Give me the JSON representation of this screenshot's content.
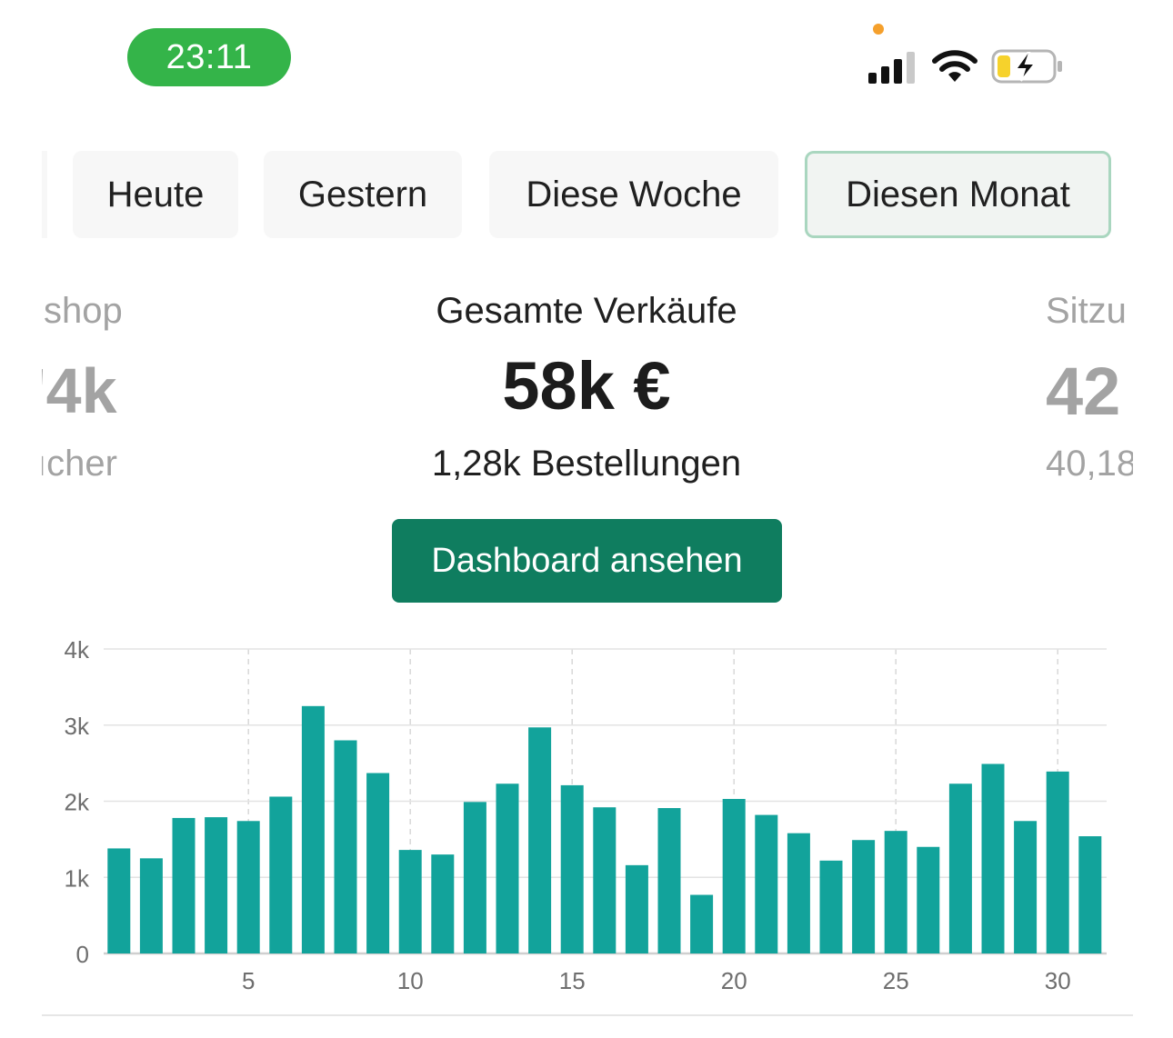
{
  "status_bar": {
    "time": "23:11",
    "icons": [
      "privacy-dot",
      "cellular-signal-icon",
      "wifi-icon",
      "battery-charging-icon"
    ],
    "time_pill_color": "#34b449"
  },
  "tabs": [
    {
      "label": "Heute",
      "active": false
    },
    {
      "label": "Gestern",
      "active": false
    },
    {
      "label": "Diese Woche",
      "active": false
    },
    {
      "label": "Diesen Monat",
      "active": true
    }
  ],
  "metrics": {
    "left": {
      "label": "shop",
      "value": "'4k",
      "sub": "ıcher"
    },
    "center": {
      "label": "Gesamte Verkäufe",
      "value": "58k €",
      "sub": "1,28k Bestellungen"
    },
    "right": {
      "label": "Sitzu",
      "value": "42",
      "sub": "40,18"
    }
  },
  "dashboard_button": {
    "label": "Dashboard ansehen",
    "color": "#0f7d5f"
  },
  "chart_data": {
    "type": "bar",
    "title": "",
    "xlabel": "",
    "ylabel": "",
    "bar_color": "#12a39b",
    "ylim": [
      0,
      4000
    ],
    "yticks": [
      0,
      1000,
      2000,
      3000,
      4000
    ],
    "ytick_labels": [
      "0",
      "1k",
      "2k",
      "3k",
      "4k"
    ],
    "xticks": [
      5,
      10,
      15,
      20,
      25,
      30
    ],
    "xtick_labels": [
      "5",
      "10",
      "15",
      "20",
      "25",
      "30"
    ],
    "x_vertical_dashed_grid": true,
    "x": [
      1,
      2,
      3,
      4,
      5,
      6,
      7,
      8,
      9,
      10,
      11,
      12,
      13,
      14,
      15,
      16,
      17,
      18,
      19,
      20,
      21,
      22,
      23,
      24,
      25,
      26,
      27,
      28,
      29,
      30,
      31
    ],
    "values": [
      1380,
      1250,
      1780,
      1790,
      1740,
      2060,
      3250,
      2800,
      2370,
      1360,
      1300,
      1990,
      2230,
      2970,
      2210,
      1920,
      1160,
      1910,
      770,
      2030,
      1820,
      1580,
      1220,
      1490,
      1610,
      1400,
      2230,
      2490,
      1740,
      2390,
      1540
    ]
  }
}
